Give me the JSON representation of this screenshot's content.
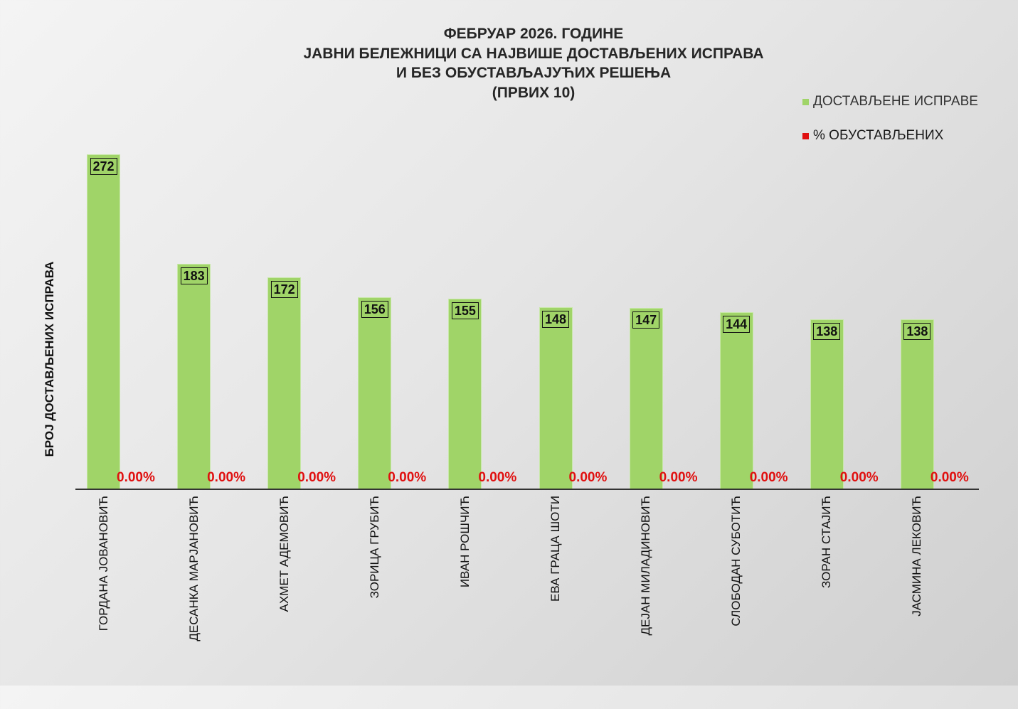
{
  "chart_data": {
    "type": "bar",
    "title": "ФЕБРУАР 2026. ГОДИНЕ\nЈАВНИ БЕЛЕЖНИЦИ СА НАЈВИШЕ ДОСТАВЉЕНИХ ИСПРАВА\nИ БЕЗ ОБУСТАВЉАЈУЋИХ РЕШЕЊА\n(ПРВИХ 10)",
    "title_lines": [
      "ФЕБРУАР 2026. ГОДИНЕ",
      "ЈАВНИ БЕЛЕЖНИЦИ СА НАЈВИШЕ ДОСТАВЉЕНИХ ИСПРАВА",
      "И БЕЗ ОБУСТАВЉАЈУЋИХ РЕШЕЊА",
      "(ПРВИХ 10)"
    ],
    "xlabel": "",
    "ylabel": "БРОЈ ДОСТАВЉЕНИХ ИСПРАВА",
    "categories": [
      "ГОРДАНА ЈОВАНОВИЋ",
      "ДЕСАНКА МАРЈАНОВИЋ",
      "АХМЕТ АДЕМОВИЋ",
      "ЗОРИЦА ГРУБИЋ",
      "ИВАН РОШЧИЋ",
      "ЕВА ГРАЦА ШОТИ",
      "ДЕЈАН МИЛАДИНОВИЋ",
      "СЛОБОДАН СУБОТИЋ",
      "ЗОРАН СТАЈИЋ",
      "ЈАСМИНА ЛЕКОВИЋ"
    ],
    "series": [
      {
        "name": "ДОСТАВЉЕНЕ ИСПРАВЕ",
        "color": "#a0d468",
        "values": [
          272,
          183,
          172,
          156,
          155,
          148,
          147,
          144,
          138,
          138
        ]
      },
      {
        "name": "% ОБУСТАВЉЕНИХ",
        "color": "#e01010",
        "values": [
          0,
          0,
          0,
          0,
          0,
          0,
          0,
          0,
          0,
          0
        ],
        "labels": [
          "0.00%",
          "0.00%",
          "0.00%",
          "0.00%",
          "0.00%",
          "0.00%",
          "0.00%",
          "0.00%",
          "0.00%",
          "0.00%"
        ]
      }
    ],
    "legend_position": "top-right",
    "grid": false
  },
  "legend": [
    {
      "label": "ДОСТАВЉЕНЕ  ИСПРАВЕ",
      "color": "#a0d468"
    },
    {
      "label": "% ОБУСТАВЉЕНИХ",
      "color": "#e01010"
    }
  ]
}
